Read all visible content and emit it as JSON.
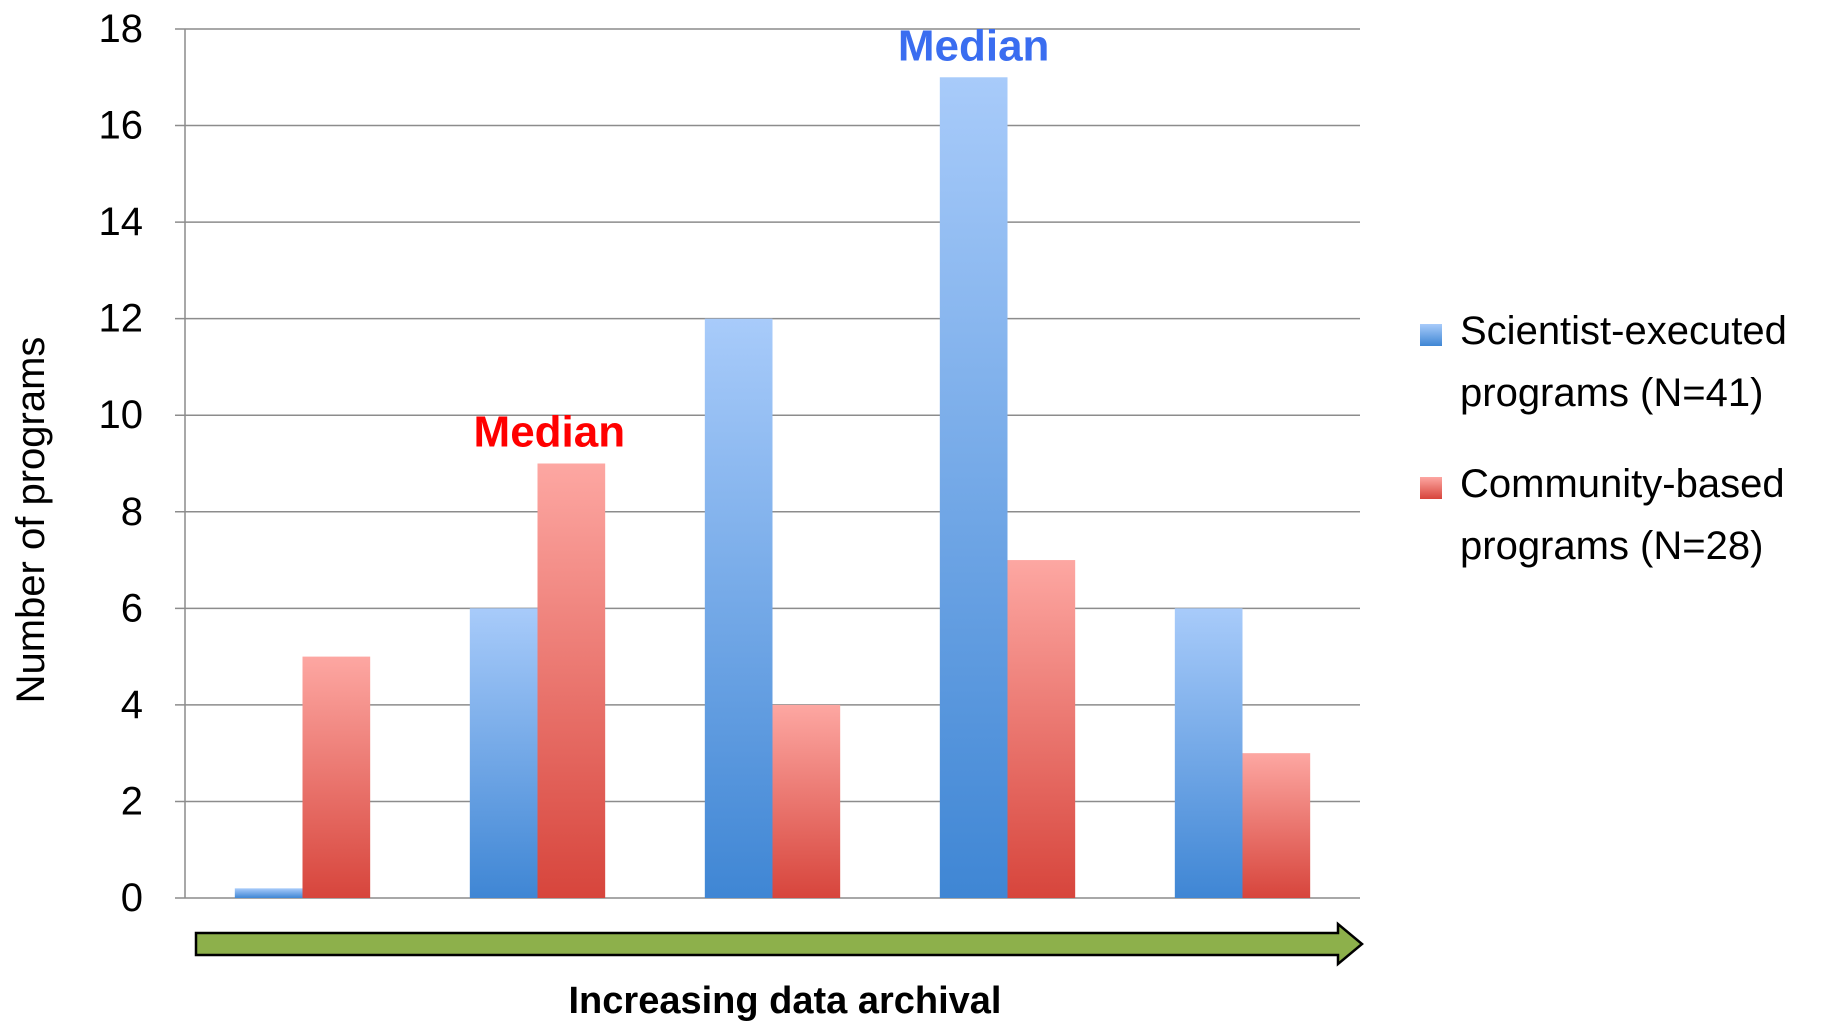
{
  "chart_data": {
    "type": "bar",
    "categories": [
      "",
      "",
      "",
      "",
      ""
    ],
    "series": [
      {
        "name": "Scientist-executed programs (N=41)",
        "legend_lines": [
          "Scientist-executed",
          "programs (N=41)"
        ],
        "values": [
          0.2,
          6,
          12,
          17,
          6
        ],
        "color": "#5b9bd5"
      },
      {
        "name": "Community-based programs (N=28)",
        "legend_lines": [
          "Community-based",
          "programs (N=28)"
        ],
        "values": [
          5,
          9,
          4,
          7,
          3
        ],
        "color": "#e8534a"
      }
    ],
    "ylabel": "Number of programs",
    "xlabel": "Increasing data archival",
    "ylim": [
      0,
      18
    ],
    "yticks": [
      0,
      2,
      4,
      6,
      8,
      10,
      12,
      14,
      16,
      18
    ],
    "grid": true,
    "legend": "right",
    "annotations": [
      {
        "text": "Median",
        "series": 1,
        "category": 1,
        "color": "#ff0000"
      },
      {
        "text": "Median",
        "series": 0,
        "category": 3,
        "color": "#3a6df0"
      }
    ],
    "arrow_color": "#8db04b"
  }
}
